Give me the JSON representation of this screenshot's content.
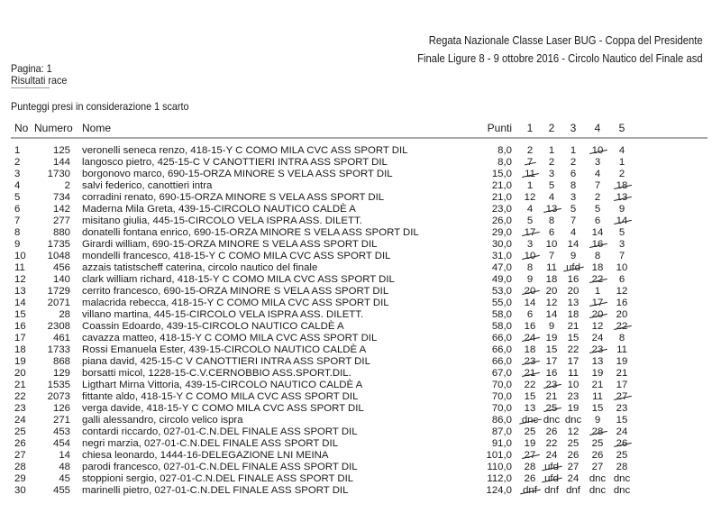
{
  "header": {
    "title": "Regata Nazionale Classe Laser BUG - Coppa del Presidente",
    "subtitle": "Finale Ligure 8 - 9 ottobre 2016 - Circolo Nautico del Finale asd"
  },
  "page_label": "Pagina: 1",
  "section_title": "Risultati race",
  "note": "Punteggi presi in considerazione 1  scarto",
  "columns": {
    "no": "No",
    "numero": "Numero",
    "nome": "Nome",
    "punti": "Punti",
    "races": [
      "1",
      "2",
      "3",
      "4",
      "5"
    ]
  },
  "rows": [
    {
      "no": "1",
      "numero": "125",
      "nome": "veronelli seneca renzo, 418-15-Y C COMO MILA CVC ASS SPORT DIL",
      "punti": "8,0",
      "races": [
        "2",
        "1",
        "1",
        "10",
        "4"
      ],
      "discard": 3
    },
    {
      "no": "2",
      "numero": "144",
      "nome": "langosco pietro, 425-15-C V CANOTTIERI INTRA ASS SPORT DIL",
      "punti": "8,0",
      "races": [
        "7",
        "2",
        "2",
        "3",
        "1"
      ],
      "discard": 0
    },
    {
      "no": "3",
      "numero": "1730",
      "nome": "borgonovo marco, 690-15-ORZA MINORE S VELA ASS SPORT DIL",
      "punti": "15,0",
      "races": [
        "11",
        "3",
        "6",
        "4",
        "2"
      ],
      "discard": 0
    },
    {
      "no": "4",
      "numero": "2",
      "nome": "salvi federico, canottieri intra",
      "punti": "21,0",
      "races": [
        "1",
        "5",
        "8",
        "7",
        "18"
      ],
      "discard": 4
    },
    {
      "no": "5",
      "numero": "734",
      "nome": "corradini renato, 690-15-ORZA MINORE S VELA ASS SPORT DIL",
      "punti": "21,0",
      "races": [
        "12",
        "4",
        "3",
        "2",
        "13"
      ],
      "discard": 4
    },
    {
      "no": "6",
      "numero": "142",
      "nome": "Maderna Mila Greta, 439-15-CIRCOLO NAUTICO CALDÈ A",
      "punti": "23,0",
      "races": [
        "4",
        "13",
        "5",
        "5",
        "9"
      ],
      "discard": 1
    },
    {
      "no": "7",
      "numero": "277",
      "nome": "misitano giulia, 445-15-CIRCOLO VELA ISPRA ASS. DILETT.",
      "punti": "26,0",
      "races": [
        "5",
        "8",
        "7",
        "6",
        "14"
      ],
      "discard": 4
    },
    {
      "no": "8",
      "numero": "880",
      "nome": "donatelli fontana enrico, 690-15-ORZA MINORE S VELA ASS SPORT DIL",
      "punti": "29,0",
      "races": [
        "17",
        "6",
        "4",
        "14",
        "5"
      ],
      "discard": 0
    },
    {
      "no": "9",
      "numero": "1735",
      "nome": "Girardi william, 690-15-ORZA MINORE S VELA ASS SPORT DIL",
      "punti": "30,0",
      "races": [
        "3",
        "10",
        "14",
        "16",
        "3"
      ],
      "discard": 3
    },
    {
      "no": "10",
      "numero": "1048",
      "nome": "mondelli francesco, 418-15-Y C COMO MILA CVC ASS SPORT DIL",
      "punti": "31,0",
      "races": [
        "10",
        "7",
        "9",
        "8",
        "7"
      ],
      "discard": 0
    },
    {
      "no": "11",
      "numero": "456",
      "nome": "azzais tatistscheff caterina, circolo nautico del finale",
      "punti": "47,0",
      "races": [
        "8",
        "11",
        "ufd",
        "18",
        "10"
      ],
      "discard": 2
    },
    {
      "no": "12",
      "numero": "140",
      "nome": "clark william richard, 418-15-Y C COMO MILA CVC ASS SPORT DIL",
      "punti": "49,0",
      "races": [
        "9",
        "18",
        "16",
        "22",
        "6"
      ],
      "discard": 3
    },
    {
      "no": "13",
      "numero": "1729",
      "nome": "cerrito francesco, 690-15-ORZA MINORE S VELA ASS SPORT DIL",
      "punti": "53,0",
      "races": [
        "20",
        "20",
        "20",
        "1",
        "12"
      ],
      "discard": 0
    },
    {
      "no": "14",
      "numero": "2071",
      "nome": "malacrida rebecca, 418-15-Y C COMO MILA CVC ASS SPORT DIL",
      "punti": "55,0",
      "races": [
        "14",
        "12",
        "13",
        "17",
        "16"
      ],
      "discard": 3
    },
    {
      "no": "15",
      "numero": "28",
      "nome": "villano martina, 445-15-CIRCOLO VELA ISPRA ASS. DILETT.",
      "punti": "58,0",
      "races": [
        "6",
        "14",
        "18",
        "20",
        "20"
      ],
      "discard": 3
    },
    {
      "no": "16",
      "numero": "2308",
      "nome": "Coassin Edoardo, 439-15-CIRCOLO NAUTICO CALDÈ A",
      "punti": "58,0",
      "races": [
        "16",
        "9",
        "21",
        "12",
        "22"
      ],
      "discard": 4
    },
    {
      "no": "17",
      "numero": "461",
      "nome": "cavazza matteo, 418-15-Y C COMO MILA CVC ASS SPORT DIL",
      "punti": "66,0",
      "races": [
        "24",
        "19",
        "15",
        "24",
        "8"
      ],
      "discard": 0
    },
    {
      "no": "18",
      "numero": "1733",
      "nome": "Rossi Emanuela Ester, 439-15-CIRCOLO NAUTICO CALDÈ A",
      "punti": "66,0",
      "races": [
        "18",
        "15",
        "22",
        "23",
        "11"
      ],
      "discard": 3
    },
    {
      "no": "19",
      "numero": "868",
      "nome": "piana david, 425-15-C V CANOTTIERI INTRA ASS SPORT DIL",
      "punti": "66,0",
      "races": [
        "23",
        "17",
        "17",
        "13",
        "19"
      ],
      "discard": 0
    },
    {
      "no": "20",
      "numero": "129",
      "nome": "borsatti micol, 1228-15-C.V.CERNOBBIO ASS.SPORT.DIL.",
      "punti": "67,0",
      "races": [
        "21",
        "16",
        "11",
        "19",
        "21"
      ],
      "discard": 0
    },
    {
      "no": "21",
      "numero": "1535",
      "nome": "Ligthart Mirna Vittoria, 439-15-CIRCOLO NAUTICO CALDÈ A",
      "punti": "70,0",
      "races": [
        "22",
        "23",
        "10",
        "21",
        "17"
      ],
      "discard": 1
    },
    {
      "no": "22",
      "numero": "2073",
      "nome": "fittante aldo, 418-15-Y C COMO MILA CVC ASS SPORT DIL",
      "punti": "70,0",
      "races": [
        "15",
        "21",
        "23",
        "11",
        "27"
      ],
      "discard": 4
    },
    {
      "no": "23",
      "numero": "126",
      "nome": "verga davide, 418-15-Y C COMO MILA CVC ASS SPORT DIL",
      "punti": "70,0",
      "races": [
        "13",
        "25",
        "19",
        "15",
        "23"
      ],
      "discard": 1
    },
    {
      "no": "24",
      "numero": "271",
      "nome": "galli alessandro, circolo velico ispra",
      "punti": "86,0",
      "races": [
        "dnc",
        "dnc",
        "dnc",
        "9",
        "15"
      ],
      "discard": 0
    },
    {
      "no": "25",
      "numero": "453",
      "nome": "contardi riccardo, 027-01-C.N.DEL FINALE ASS SPORT DIL",
      "punti": "87,0",
      "races": [
        "25",
        "26",
        "12",
        "28",
        "24"
      ],
      "discard": 3
    },
    {
      "no": "26",
      "numero": "454",
      "nome": "negri marzia, 027-01-C.N.DEL FINALE ASS SPORT DIL",
      "punti": "91,0",
      "races": [
        "19",
        "22",
        "25",
        "25",
        "26"
      ],
      "discard": 4
    },
    {
      "no": "27",
      "numero": "14",
      "nome": "chiesa leonardo, 1444-16-DELEGAZIONE LNI MEINA",
      "punti": "101,0",
      "races": [
        "27",
        "24",
        "26",
        "26",
        "25"
      ],
      "discard": 0
    },
    {
      "no": "28",
      "numero": "48",
      "nome": "parodi francesco, 027-01-C.N.DEL FINALE ASS SPORT DIL",
      "punti": "110,0",
      "races": [
        "28",
        "ufd",
        "27",
        "27",
        "28"
      ],
      "discard": 1
    },
    {
      "no": "29",
      "numero": "45",
      "nome": "stoppioni sergio, 027-01-C.N.DEL FINALE ASS SPORT DIL",
      "punti": "112,0",
      "races": [
        "26",
        "ufd",
        "24",
        "dnc",
        "dnc"
      ],
      "discard": 1
    },
    {
      "no": "30",
      "numero": "455",
      "nome": "marinelli pietro, 027-01-C.N.DEL FINALE ASS SPORT DIL",
      "punti": "124,0",
      "races": [
        "dnf",
        "dnf",
        "dnf",
        "dnc",
        "dnc"
      ],
      "discard": 0
    }
  ]
}
